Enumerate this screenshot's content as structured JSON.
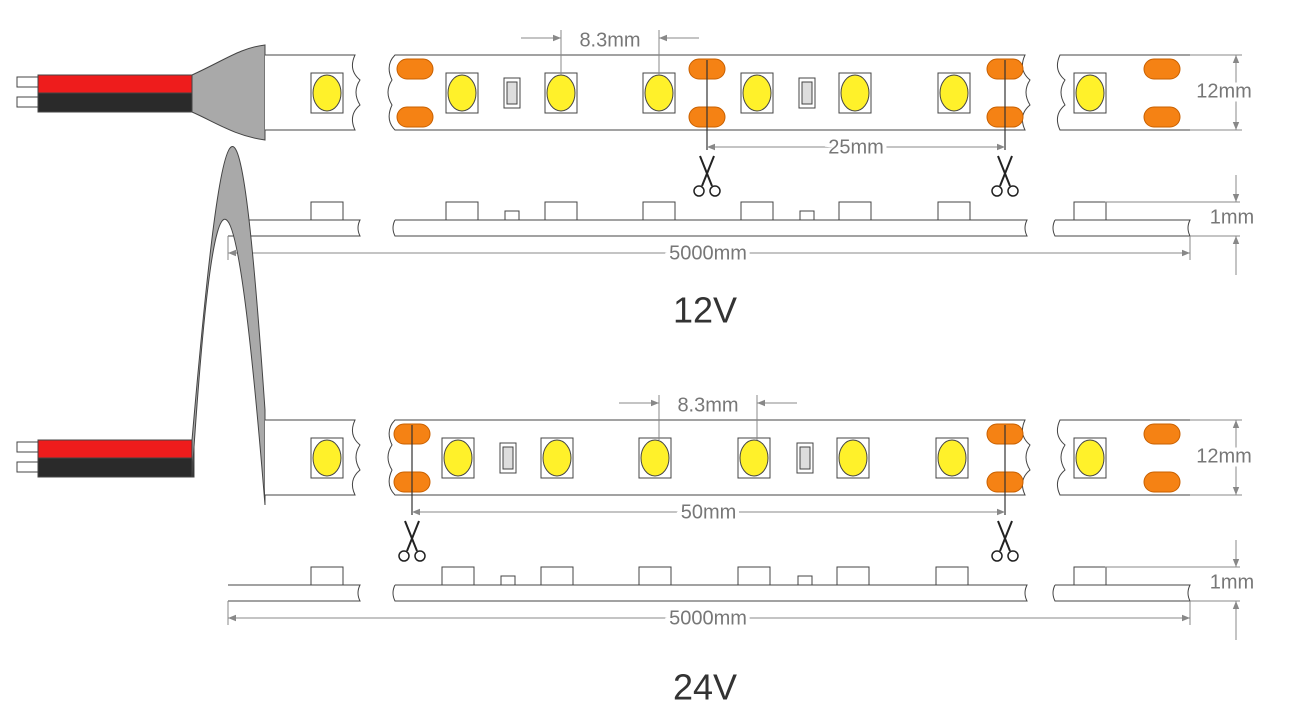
{
  "diagrams": [
    {
      "led_pitch": "8.3mm",
      "width": "12mm",
      "cut_interval": "25mm",
      "thickness": "1mm",
      "length": "5000mm",
      "voltage": "12V"
    },
    {
      "led_pitch": "8.3mm",
      "width": "12mm",
      "cut_interval": "50mm",
      "thickness": "1mm",
      "length": "5000mm",
      "voltage": "24V"
    }
  ]
}
